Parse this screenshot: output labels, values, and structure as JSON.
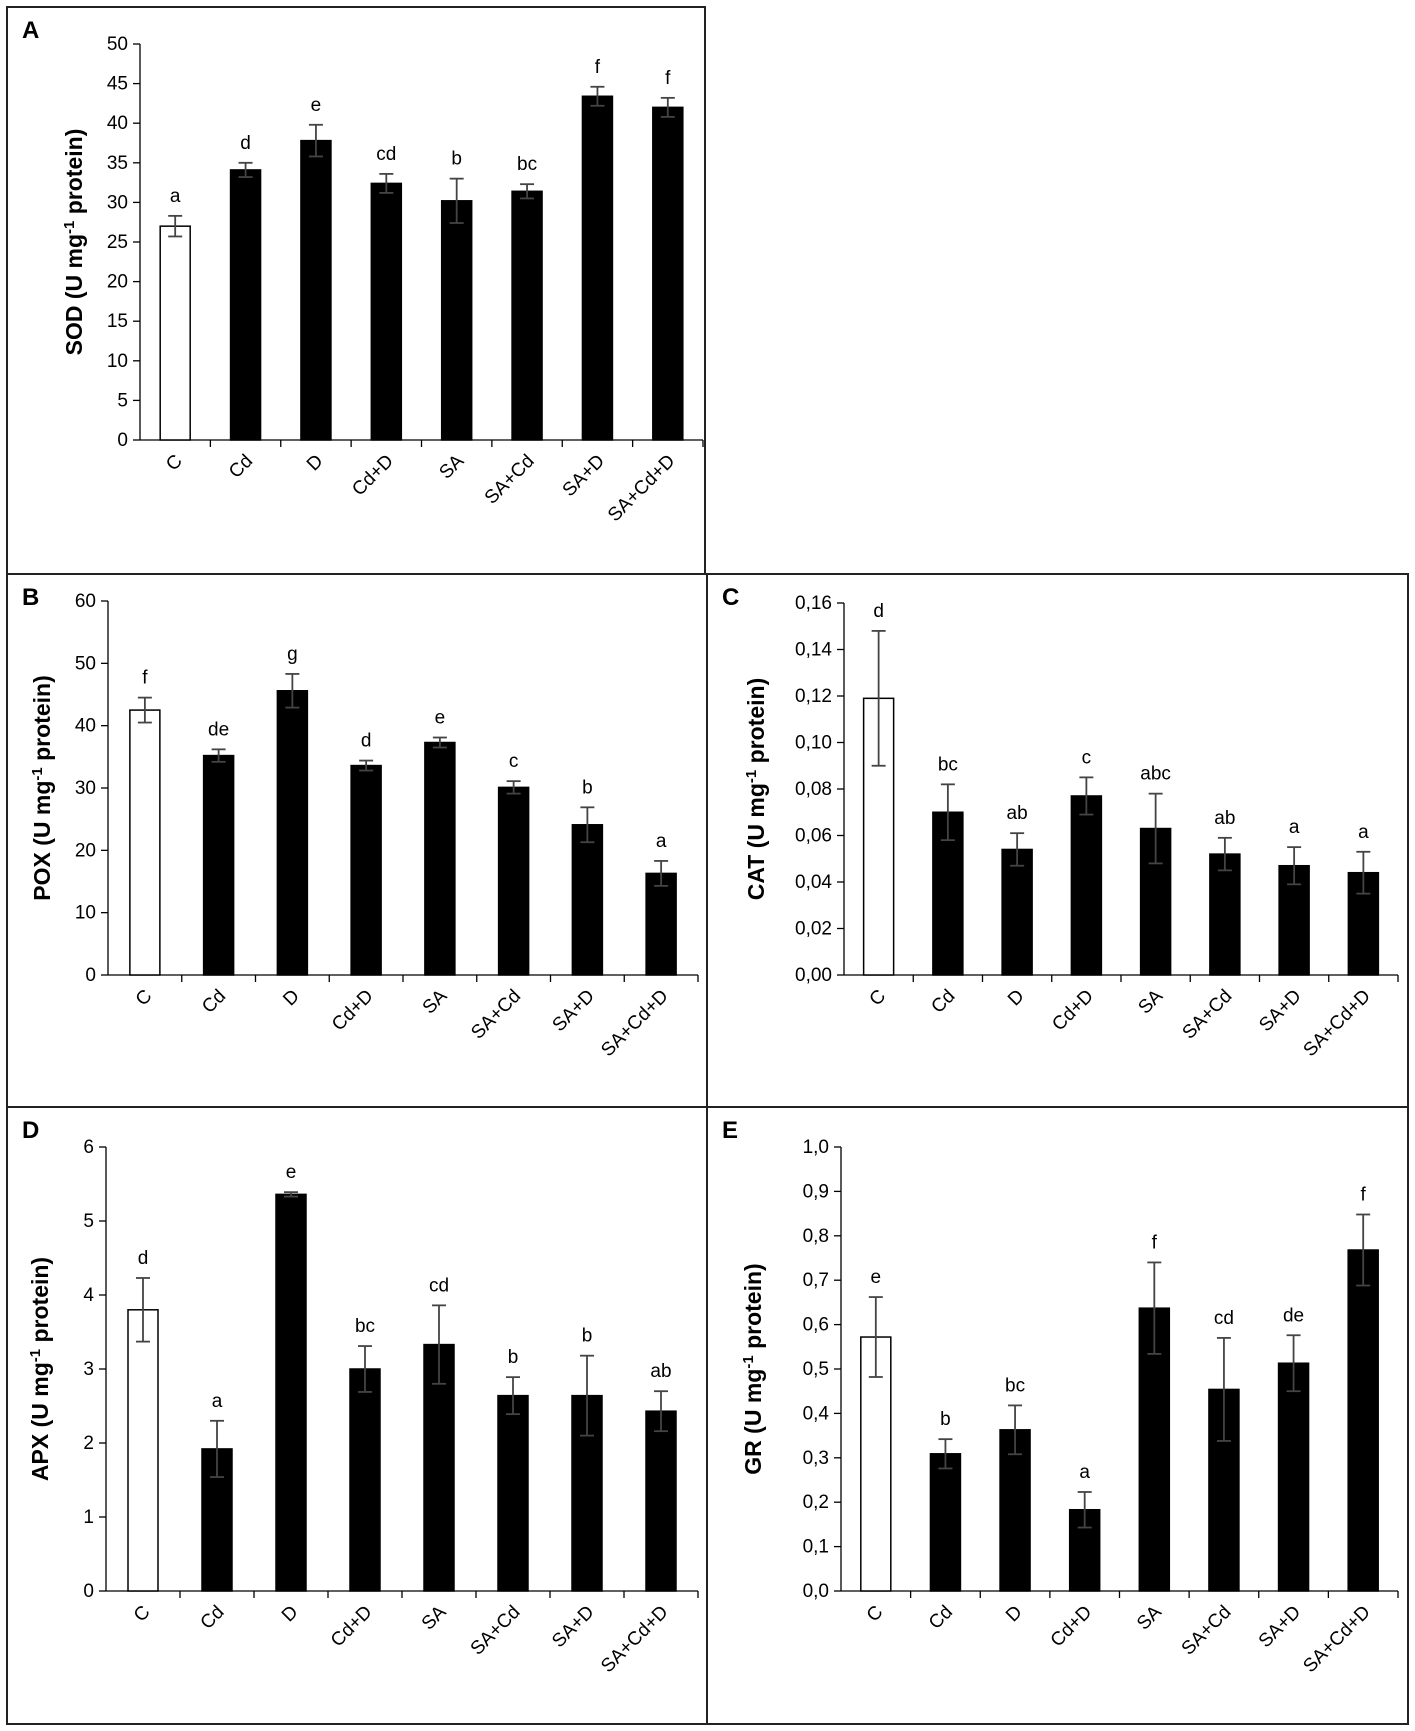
{
  "chart_data": [
    {
      "panel": "A",
      "type": "bar",
      "categories": [
        "C",
        "Cd",
        "D",
        "Cd+D",
        "SA",
        "SA+Cd",
        "SA+D",
        "SA+Cd+D"
      ],
      "values": [
        27,
        34.1,
        37.8,
        32.4,
        30.2,
        31.4,
        43.4,
        42
      ],
      "errors": [
        1.3,
        0.9,
        2.0,
        1.2,
        2.8,
        0.9,
        1.2,
        1.2
      ],
      "letters": [
        "a",
        "d",
        "e",
        "cd",
        "b",
        "bc",
        "f",
        "f"
      ],
      "fills": [
        "#ffffff",
        "#000000",
        "#000000",
        "#000000",
        "#000000",
        "#000000",
        "#000000",
        "#000000"
      ],
      "ylabel": "SOD (U mg-1 protein)",
      "ylim": [
        0,
        50
      ],
      "yticks": [
        "0",
        "5",
        "10",
        "15",
        "20",
        "25",
        "30",
        "35",
        "40",
        "45",
        "50"
      ]
    },
    {
      "panel": "B",
      "type": "bar",
      "categories": [
        "C",
        "Cd",
        "D",
        "Cd+D",
        "SA",
        "SA+Cd",
        "SA+D",
        "SA+Cd+D"
      ],
      "values": [
        42.5,
        35.2,
        45.6,
        33.6,
        37.3,
        30.1,
        24.1,
        16.3
      ],
      "errors": [
        2.0,
        1.0,
        2.7,
        0.8,
        0.8,
        1.0,
        2.8,
        2.0
      ],
      "letters": [
        "f",
        "de",
        "g",
        "d",
        "e",
        "c",
        "b",
        "a"
      ],
      "fills": [
        "#ffffff",
        "#000000",
        "#000000",
        "#000000",
        "#000000",
        "#000000",
        "#000000",
        "#000000"
      ],
      "ylabel": "POX (U mg-1 protein)",
      "ylim": [
        0,
        60
      ],
      "yticks": [
        "0",
        "10",
        "20",
        "30",
        "40",
        "50",
        "60"
      ]
    },
    {
      "panel": "C",
      "type": "bar",
      "categories": [
        "C",
        "Cd",
        "D",
        "Cd+D",
        "SA",
        "SA+Cd",
        "SA+D",
        "SA+Cd+D"
      ],
      "values": [
        0.119,
        0.07,
        0.054,
        0.077,
        0.063,
        0.052,
        0.047,
        0.044
      ],
      "errors": [
        0.029,
        0.012,
        0.007,
        0.008,
        0.015,
        0.007,
        0.008,
        0.009
      ],
      "letters": [
        "d",
        "bc",
        "ab",
        "c",
        "abc",
        "ab",
        "a",
        "a"
      ],
      "fills": [
        "#ffffff",
        "#000000",
        "#000000",
        "#000000",
        "#000000",
        "#000000",
        "#000000",
        "#000000"
      ],
      "ylabel": "CAT (U mg-1 protein)",
      "ylim": [
        0,
        0.16
      ],
      "yticks": [
        "0,00",
        "0,02",
        "0,04",
        "0,06",
        "0,08",
        "0,10",
        "0,12",
        "0,14",
        "0,16"
      ]
    },
    {
      "panel": "D",
      "type": "bar",
      "categories": [
        "C",
        "Cd",
        "D",
        "Cd+D",
        "SA",
        "SA+Cd",
        "SA+D",
        "SA+Cd+D"
      ],
      "values": [
        3.8,
        1.92,
        5.36,
        3.0,
        3.33,
        2.64,
        2.64,
        2.43
      ],
      "errors": [
        0.43,
        0.38,
        0.03,
        0.31,
        0.53,
        0.25,
        0.54,
        0.27
      ],
      "letters": [
        "d",
        "a",
        "e",
        "bc",
        "cd",
        "b",
        "b",
        "ab"
      ],
      "fills": [
        "#ffffff",
        "#000000",
        "#000000",
        "#000000",
        "#000000",
        "#000000",
        "#000000",
        "#000000"
      ],
      "ylabel": "APX (U mg-1 protein)",
      "ylim": [
        0,
        6
      ],
      "yticks": [
        "0",
        "1",
        "2",
        "3",
        "4",
        "5",
        "6"
      ]
    },
    {
      "panel": "E",
      "type": "bar",
      "categories": [
        "C",
        "Cd",
        "D",
        "Cd+D",
        "SA",
        "SA+Cd",
        "SA+D",
        "SA+Cd+D"
      ],
      "values": [
        0.572,
        0.309,
        0.363,
        0.183,
        0.637,
        0.454,
        0.513,
        0.768
      ],
      "errors": [
        0.09,
        0.033,
        0.055,
        0.04,
        0.103,
        0.116,
        0.063,
        0.08
      ],
      "letters": [
        "e",
        "b",
        "bc",
        "a",
        "f",
        "cd",
        "de",
        "f"
      ],
      "fills": [
        "#ffffff",
        "#000000",
        "#000000",
        "#000000",
        "#000000",
        "#000000",
        "#000000",
        "#000000"
      ],
      "ylabel": "GR (U mg-1 protein)",
      "ylim": [
        0,
        1.0
      ],
      "yticks": [
        "0,0",
        "0,1",
        "0,2",
        "0,3",
        "0,4",
        "0,5",
        "0,6",
        "0,7",
        "0,8",
        "0,9",
        "1,0"
      ]
    }
  ]
}
